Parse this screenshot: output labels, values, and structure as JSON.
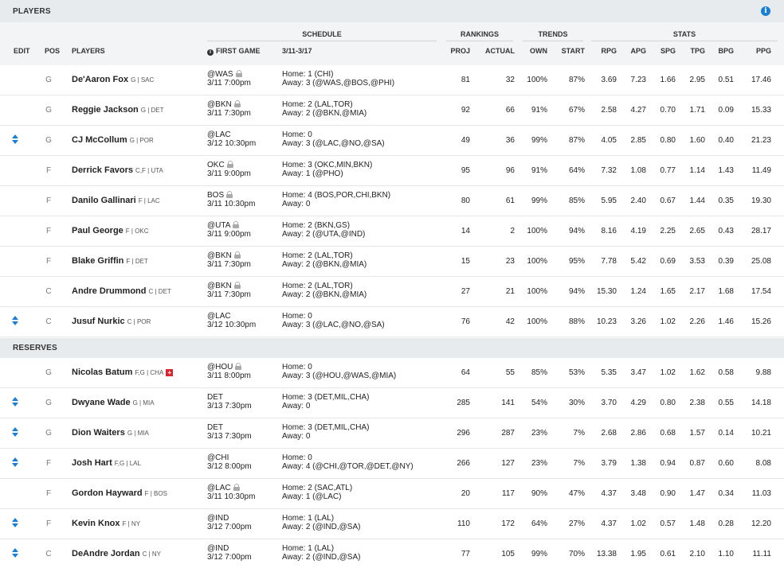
{
  "title": "PLAYERS",
  "reserves_title": "RESERVES",
  "headers": {
    "groups": {
      "schedule": "SCHEDULE",
      "rankings": "RANKINGS",
      "trends": "TRENDS",
      "stats": "STATS"
    },
    "edit": "EDIT",
    "pos": "POS",
    "players": "PLAYERS",
    "first_game": "FIRST GAME",
    "week": "3/11-3/17",
    "proj": "PROJ",
    "actual": "ACTUAL",
    "own": "OWN",
    "start": "START",
    "rpg": "RPG",
    "apg": "APG",
    "spg": "SPG",
    "tpg": "TPG",
    "bpg": "BPG",
    "ppg": "PPG"
  },
  "starters": [
    {
      "edit": false,
      "pos": "G",
      "name": "De'Aaron Fox",
      "meta": "G | SAC",
      "game1": "@WAS",
      "locked": true,
      "game2": "3/11 7:00pm",
      "home": "Home: 1 (CHI)",
      "away": "Away: 3 (@WAS,@BOS,@PHI)",
      "proj": "81",
      "actual": "32",
      "own": "100%",
      "start": "87%",
      "rpg": "3.69",
      "apg": "7.23",
      "spg": "1.66",
      "tpg": "2.95",
      "bpg": "0.51",
      "ppg": "17.46"
    },
    {
      "edit": false,
      "pos": "G",
      "name": "Reggie Jackson",
      "meta": "G | DET",
      "game1": "@BKN",
      "locked": true,
      "game2": "3/11 7:30pm",
      "home": "Home: 2 (LAL,TOR)",
      "away": "Away: 2 (@BKN,@MIA)",
      "proj": "92",
      "actual": "66",
      "own": "91%",
      "start": "67%",
      "rpg": "2.58",
      "apg": "4.27",
      "spg": "0.70",
      "tpg": "1.71",
      "bpg": "0.09",
      "ppg": "15.33"
    },
    {
      "edit": true,
      "pos": "G",
      "name": "CJ McCollum",
      "meta": "G | POR",
      "game1": "@LAC",
      "locked": false,
      "game2": "3/12 10:30pm",
      "home": "Home: 0",
      "away": "Away: 3 (@LAC,@NO,@SA)",
      "proj": "49",
      "actual": "36",
      "own": "99%",
      "start": "87%",
      "rpg": "4.05",
      "apg": "2.85",
      "spg": "0.80",
      "tpg": "1.60",
      "bpg": "0.40",
      "ppg": "21.23"
    },
    {
      "edit": false,
      "pos": "F",
      "name": "Derrick Favors",
      "meta": "C,F | UTA",
      "game1": "OKC",
      "locked": true,
      "game2": "3/11 9:00pm",
      "home": "Home: 3 (OKC,MIN,BKN)",
      "away": "Away: 1 (@PHO)",
      "proj": "95",
      "actual": "96",
      "own": "91%",
      "start": "64%",
      "rpg": "7.32",
      "apg": "1.08",
      "spg": "0.77",
      "tpg": "1.14",
      "bpg": "1.43",
      "ppg": "11.49"
    },
    {
      "edit": false,
      "pos": "F",
      "name": "Danilo Gallinari",
      "meta": "F | LAC",
      "game1": "BOS",
      "locked": true,
      "game2": "3/11 10:30pm",
      "home": "Home: 4 (BOS,POR,CHI,BKN)",
      "away": "Away: 0",
      "proj": "80",
      "actual": "61",
      "own": "99%",
      "start": "85%",
      "rpg": "5.95",
      "apg": "2.40",
      "spg": "0.67",
      "tpg": "1.44",
      "bpg": "0.35",
      "ppg": "19.30"
    },
    {
      "edit": false,
      "pos": "F",
      "name": "Paul George",
      "meta": "F | OKC",
      "game1": "@UTA",
      "locked": true,
      "game2": "3/11 9:00pm",
      "home": "Home: 2 (BKN,GS)",
      "away": "Away: 2 (@UTA,@IND)",
      "proj": "14",
      "actual": "2",
      "own": "100%",
      "start": "94%",
      "rpg": "8.16",
      "apg": "4.19",
      "spg": "2.25",
      "tpg": "2.65",
      "bpg": "0.43",
      "ppg": "28.17"
    },
    {
      "edit": false,
      "pos": "F",
      "name": "Blake Griffin",
      "meta": "F | DET",
      "game1": "@BKN",
      "locked": true,
      "game2": "3/11 7:30pm",
      "home": "Home: 2 (LAL,TOR)",
      "away": "Away: 2 (@BKN,@MIA)",
      "proj": "15",
      "actual": "23",
      "own": "100%",
      "start": "95%",
      "rpg": "7.78",
      "apg": "5.42",
      "spg": "0.69",
      "tpg": "3.53",
      "bpg": "0.39",
      "ppg": "25.08"
    },
    {
      "edit": false,
      "pos": "C",
      "name": "Andre Drummond",
      "meta": "C | DET",
      "game1": "@BKN",
      "locked": true,
      "game2": "3/11 7:30pm",
      "home": "Home: 2 (LAL,TOR)",
      "away": "Away: 2 (@BKN,@MIA)",
      "proj": "27",
      "actual": "21",
      "own": "100%",
      "start": "94%",
      "rpg": "15.30",
      "apg": "1.24",
      "spg": "1.65",
      "tpg": "2.17",
      "bpg": "1.68",
      "ppg": "17.54"
    },
    {
      "edit": true,
      "pos": "C",
      "name": "Jusuf Nurkic",
      "meta": "C | POR",
      "game1": "@LAC",
      "locked": false,
      "game2": "3/12 10:30pm",
      "home": "Home: 0",
      "away": "Away: 3 (@LAC,@NO,@SA)",
      "proj": "76",
      "actual": "42",
      "own": "100%",
      "start": "88%",
      "rpg": "10.23",
      "apg": "3.26",
      "spg": "1.02",
      "tpg": "2.26",
      "bpg": "1.46",
      "ppg": "15.26"
    }
  ],
  "reserves": [
    {
      "edit": false,
      "pos": "G",
      "name": "Nicolas Batum",
      "meta": "F,G | CHA",
      "injury": "+",
      "game1": "@HOU",
      "locked": true,
      "game2": "3/11 8:00pm",
      "home": "Home: 0",
      "away": "Away: 3 (@HOU,@WAS,@MIA)",
      "proj": "64",
      "actual": "55",
      "own": "85%",
      "start": "53%",
      "rpg": "5.35",
      "apg": "3.47",
      "spg": "1.02",
      "tpg": "1.62",
      "bpg": "0.58",
      "ppg": "9.88"
    },
    {
      "edit": true,
      "pos": "G",
      "name": "Dwyane Wade",
      "meta": "G | MIA",
      "game1": "DET",
      "locked": false,
      "game2": "3/13 7:30pm",
      "home": "Home: 3 (DET,MIL,CHA)",
      "away": "Away: 0",
      "proj": "285",
      "actual": "141",
      "own": "54%",
      "start": "30%",
      "rpg": "3.70",
      "apg": "4.29",
      "spg": "0.80",
      "tpg": "2.38",
      "bpg": "0.55",
      "ppg": "14.18"
    },
    {
      "edit": true,
      "pos": "G",
      "name": "Dion Waiters",
      "meta": "G | MIA",
      "game1": "DET",
      "locked": false,
      "game2": "3/13 7:30pm",
      "home": "Home: 3 (DET,MIL,CHA)",
      "away": "Away: 0",
      "proj": "296",
      "actual": "287",
      "own": "23%",
      "start": "7%",
      "rpg": "2.68",
      "apg": "2.86",
      "spg": "0.68",
      "tpg": "1.57",
      "bpg": "0.14",
      "ppg": "10.21"
    },
    {
      "edit": true,
      "pos": "F",
      "name": "Josh Hart",
      "meta": "F,G | LAL",
      "game1": "@CHI",
      "locked": false,
      "game2": "3/12 8:00pm",
      "home": "Home: 0",
      "away": "Away: 4 (@CHI,@TOR,@DET,@NY)",
      "proj": "266",
      "actual": "127",
      "own": "23%",
      "start": "7%",
      "rpg": "3.79",
      "apg": "1.38",
      "spg": "0.94",
      "tpg": "0.87",
      "bpg": "0.60",
      "ppg": "8.08"
    },
    {
      "edit": false,
      "pos": "F",
      "name": "Gordon Hayward",
      "meta": "F | BOS",
      "game1": "@LAC",
      "locked": true,
      "game2": "3/11 10:30pm",
      "home": "Home: 2 (SAC,ATL)",
      "away": "Away: 1 (@LAC)",
      "proj": "20",
      "actual": "117",
      "own": "90%",
      "start": "47%",
      "rpg": "4.37",
      "apg": "3.48",
      "spg": "0.90",
      "tpg": "1.47",
      "bpg": "0.34",
      "ppg": "11.03"
    },
    {
      "edit": true,
      "pos": "F",
      "name": "Kevin Knox",
      "meta": "F | NY",
      "game1": "@IND",
      "locked": false,
      "game2": "3/12 7:00pm",
      "home": "Home: 1 (LAL)",
      "away": "Away: 2 (@IND,@SA)",
      "proj": "110",
      "actual": "172",
      "own": "64%",
      "start": "27%",
      "rpg": "4.37",
      "apg": "1.02",
      "spg": "0.57",
      "tpg": "1.48",
      "bpg": "0.28",
      "ppg": "12.20"
    },
    {
      "edit": true,
      "pos": "C",
      "name": "DeAndre Jordan",
      "meta": "C | NY",
      "game1": "@IND",
      "locked": false,
      "game2": "3/12 7:00pm",
      "home": "Home: 1 (LAL)",
      "away": "Away: 2 (@IND,@SA)",
      "proj": "77",
      "actual": "105",
      "own": "99%",
      "start": "70%",
      "rpg": "13.38",
      "apg": "1.95",
      "spg": "0.61",
      "tpg": "2.10",
      "bpg": "1.10",
      "ppg": "11.11"
    }
  ]
}
